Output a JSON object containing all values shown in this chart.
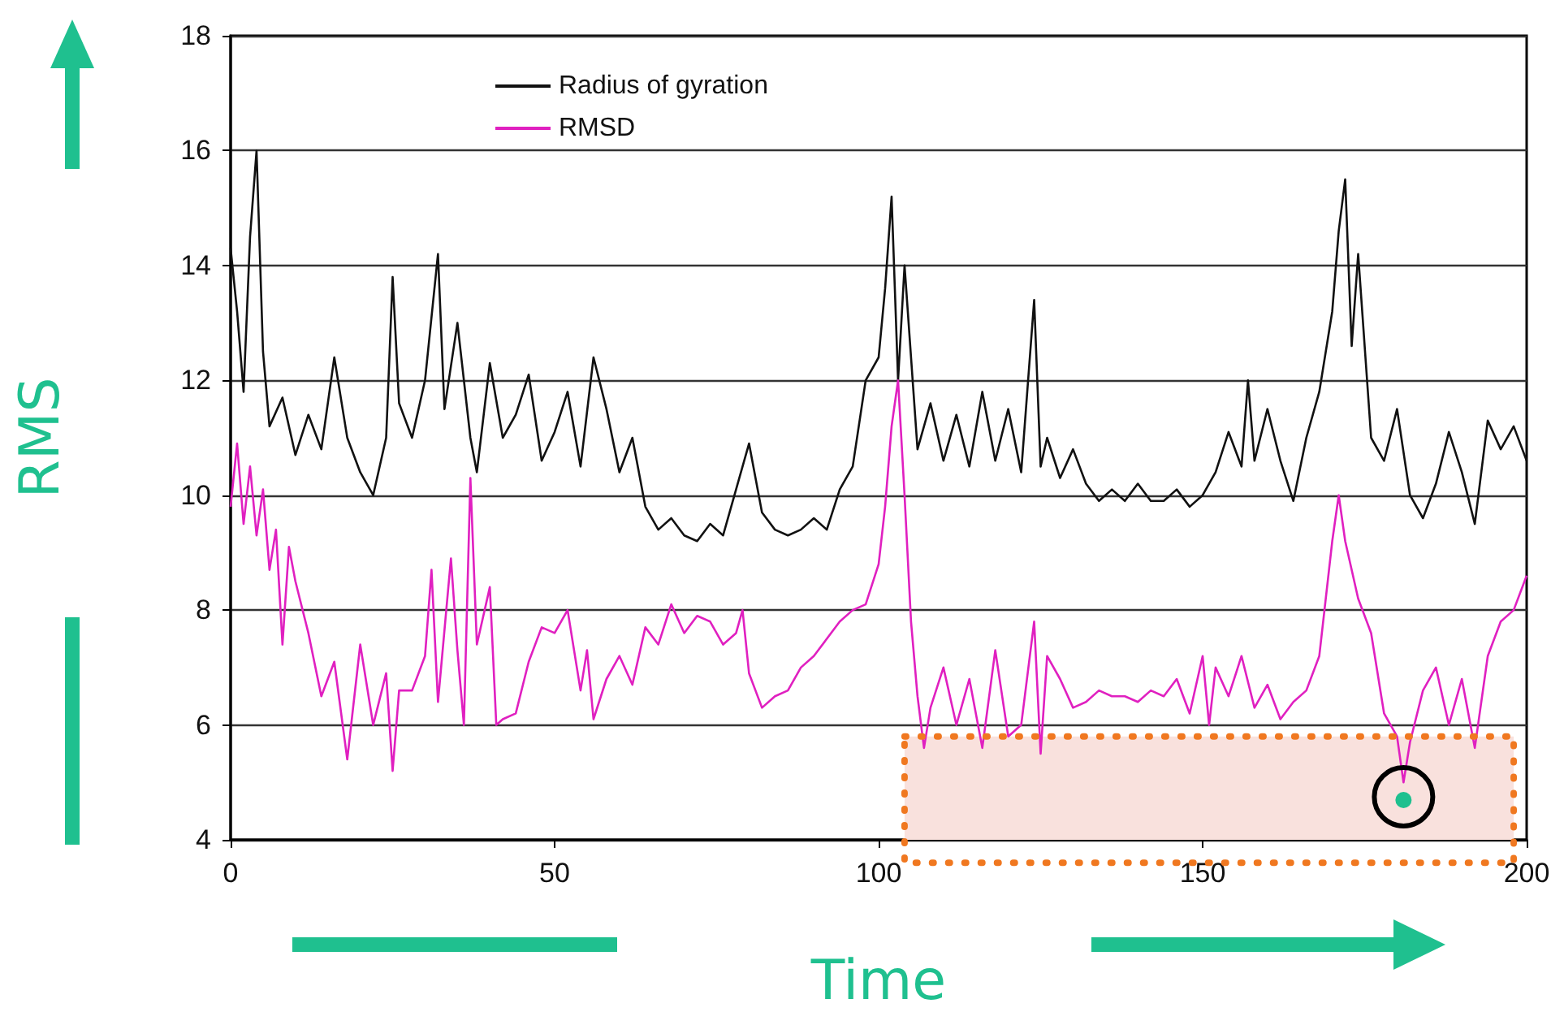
{
  "chart_data": {
    "type": "line",
    "xlabel": "Time",
    "ylabel": "RMS",
    "xlim": [
      0,
      200
    ],
    "xticks": [
      0,
      50,
      100,
      150,
      200
    ],
    "ylim": [
      4,
      18
    ],
    "yticks": [
      4,
      6,
      8,
      10,
      12,
      14,
      16,
      18
    ],
    "bands": [
      {
        "axis": "y",
        "from": 4,
        "to": 5.8,
        "color": "#f9e1dd"
      }
    ],
    "grid": "y",
    "legend": "top left",
    "marker": "none",
    "line_style": "solid",
    "series": [
      {
        "name": "Radius of gyration",
        "color": "#111111",
        "x": [
          0,
          1,
          2,
          3,
          4,
          5,
          6,
          8,
          10,
          12,
          14,
          16,
          18,
          20,
          22,
          24,
          25,
          26,
          28,
          30,
          32,
          33,
          35,
          37,
          38,
          40,
          42,
          44,
          46,
          48,
          50,
          52,
          54,
          56,
          58,
          60,
          62,
          64,
          66,
          68,
          70,
          72,
          74,
          76,
          78,
          80,
          82,
          84,
          86,
          88,
          90,
          92,
          94,
          96,
          98,
          100,
          101,
          102,
          103,
          104,
          106,
          108,
          110,
          112,
          114,
          116,
          118,
          120,
          122,
          124,
          125,
          126,
          128,
          130,
          132,
          134,
          136,
          138,
          140,
          142,
          144,
          146,
          148,
          150,
          152,
          154,
          156,
          157,
          158,
          160,
          162,
          164,
          166,
          168,
          170,
          171,
          172,
          173,
          174,
          176,
          178,
          180,
          182,
          184,
          186,
          188,
          190,
          192,
          194,
          196,
          198,
          200
        ],
        "values": [
          14.3,
          13.2,
          11.8,
          14.5,
          16.0,
          12.5,
          11.2,
          11.7,
          10.7,
          11.4,
          10.8,
          12.4,
          11.0,
          10.4,
          10.0,
          11.0,
          13.8,
          11.6,
          11.0,
          12.0,
          14.2,
          11.5,
          13.0,
          11.0,
          10.4,
          12.3,
          11.0,
          11.4,
          12.1,
          10.6,
          11.1,
          11.8,
          10.5,
          12.4,
          11.5,
          10.4,
          11.0,
          9.8,
          9.4,
          9.6,
          9.3,
          9.2,
          9.5,
          9.3,
          10.1,
          10.9,
          9.7,
          9.4,
          9.3,
          9.4,
          9.6,
          9.4,
          10.1,
          10.5,
          12.0,
          12.4,
          13.6,
          15.2,
          12.0,
          14.0,
          10.8,
          11.6,
          10.6,
          11.4,
          10.5,
          11.8,
          10.6,
          11.5,
          10.4,
          13.4,
          10.5,
          11.0,
          10.3,
          10.8,
          10.2,
          9.9,
          10.1,
          9.9,
          10.2,
          9.9,
          9.9,
          10.1,
          9.8,
          10.0,
          10.4,
          11.1,
          10.5,
          12.0,
          10.6,
          11.5,
          10.6,
          9.9,
          11.0,
          11.8,
          13.2,
          14.6,
          15.5,
          12.6,
          14.2,
          11.0,
          10.6,
          11.5,
          10.0,
          9.6,
          10.2,
          11.1,
          10.4,
          9.5,
          11.3,
          10.8,
          11.2,
          10.6
        ]
      },
      {
        "name": "RMSD",
        "color": "#e020c0",
        "x": [
          0,
          1,
          2,
          3,
          4,
          5,
          6,
          7,
          8,
          9,
          10,
          12,
          14,
          16,
          18,
          20,
          22,
          24,
          25,
          26,
          28,
          30,
          31,
          32,
          34,
          35,
          36,
          37,
          38,
          40,
          41,
          42,
          44,
          46,
          48,
          50,
          52,
          54,
          55,
          56,
          58,
          60,
          62,
          64,
          66,
          68,
          70,
          72,
          74,
          76,
          78,
          79,
          80,
          82,
          84,
          86,
          88,
          90,
          92,
          94,
          96,
          98,
          100,
          101,
          102,
          103,
          104,
          105,
          106,
          107,
          108,
          110,
          112,
          114,
          116,
          118,
          120,
          122,
          124,
          125,
          126,
          128,
          130,
          132,
          134,
          136,
          138,
          140,
          142,
          144,
          146,
          148,
          150,
          151,
          152,
          154,
          156,
          158,
          160,
          162,
          164,
          166,
          168,
          170,
          171,
          172,
          174,
          176,
          178,
          180,
          181,
          182,
          184,
          186,
          188,
          190,
          192,
          194,
          196,
          198,
          200
        ],
        "values": [
          9.8,
          10.9,
          9.5,
          10.5,
          9.3,
          10.1,
          8.7,
          9.4,
          7.4,
          9.1,
          8.5,
          7.6,
          6.5,
          7.1,
          5.4,
          7.4,
          6.0,
          6.9,
          5.2,
          6.6,
          6.6,
          7.2,
          8.7,
          6.4,
          8.9,
          7.3,
          6.0,
          10.3,
          7.4,
          8.4,
          6.0,
          6.1,
          6.2,
          7.1,
          7.7,
          7.6,
          8.0,
          6.6,
          7.3,
          6.1,
          6.8,
          7.2,
          6.7,
          7.7,
          7.4,
          8.1,
          7.6,
          7.9,
          7.8,
          7.4,
          7.6,
          8.0,
          6.9,
          6.3,
          6.5,
          6.6,
          7.0,
          7.2,
          7.5,
          7.8,
          8.0,
          8.1,
          8.8,
          9.8,
          11.2,
          12.0,
          10.0,
          7.8,
          6.5,
          5.6,
          6.3,
          7.0,
          6.0,
          6.8,
          5.6,
          7.3,
          5.8,
          6.0,
          7.8,
          5.5,
          7.2,
          6.8,
          6.3,
          6.4,
          6.6,
          6.5,
          6.5,
          6.4,
          6.6,
          6.5,
          6.8,
          6.2,
          7.2,
          6.0,
          7.0,
          6.5,
          7.2,
          6.3,
          6.7,
          6.1,
          6.4,
          6.6,
          7.2,
          9.2,
          10.0,
          9.2,
          8.2,
          7.6,
          6.2,
          5.8,
          5.0,
          5.7,
          6.6,
          7.0,
          6.0,
          6.8,
          5.6,
          7.2,
          7.8,
          8.0,
          8.6
        ]
      }
    ]
  }
}
